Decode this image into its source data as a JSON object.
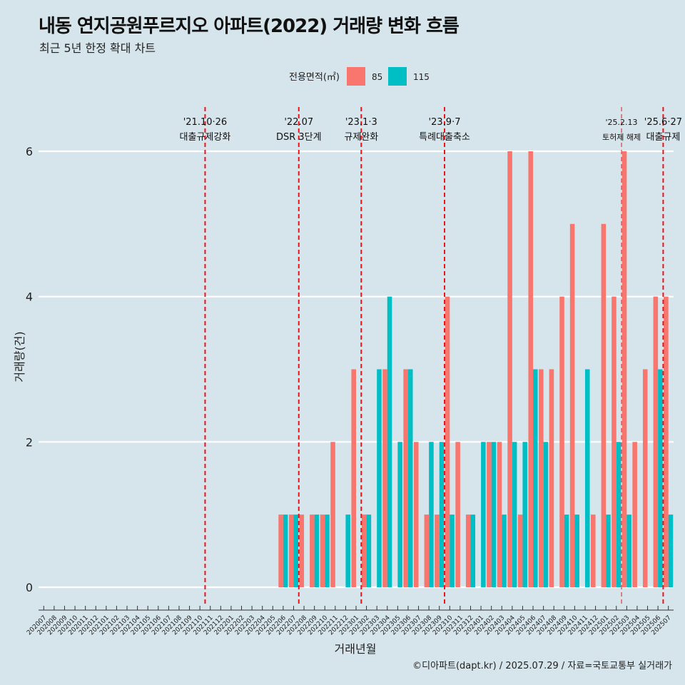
{
  "header": {
    "title": "내동 연지공원푸르지오 아파트(2022) 거래량 변화 흐름",
    "subtitle": "최근 5년 한정 확대 차트"
  },
  "footer": {
    "caption": "©디아파트(dapt.kr) / 2025.07.29 / 자료=국토교통부 실거래가"
  },
  "colors": {
    "background": "#d6e4eb",
    "series_85": "#f8766d",
    "series_115": "#00bfc4",
    "event_line": "#e8161b",
    "grid": "#ffffff"
  },
  "chart_data": {
    "type": "bar",
    "xlabel": "거래년월",
    "ylabel": "거래량(건)",
    "ylim": [
      0,
      6
    ],
    "yticks": [
      0,
      2,
      4,
      6
    ],
    "grid": "horizontal major lines",
    "legend": {
      "title": "전용면적(㎡)",
      "placement": "top-center"
    },
    "categories": [
      "202007",
      "202008",
      "202009",
      "202010",
      "202011",
      "202012",
      "202101",
      "202102",
      "202103",
      "202104",
      "202105",
      "202106",
      "202107",
      "202108",
      "202109",
      "202110",
      "202111",
      "202112",
      "202201",
      "202202",
      "202203",
      "202204",
      "202205",
      "202206",
      "202207",
      "202208",
      "202209",
      "202210",
      "202211",
      "202212",
      "202301",
      "202302",
      "202303",
      "202304",
      "202305",
      "202306",
      "202307",
      "202308",
      "202309",
      "202310",
      "202311",
      "202312",
      "202401",
      "202402",
      "202403",
      "202404",
      "202405",
      "202406",
      "202407",
      "202408",
      "202409",
      "202410",
      "202411",
      "202412",
      "202501",
      "202502",
      "202503",
      "202504",
      "202505",
      "202506",
      "202507"
    ],
    "series": [
      {
        "name": "85",
        "color": "#f8766d",
        "values": [
          0,
          0,
          0,
          0,
          0,
          0,
          0,
          0,
          0,
          0,
          0,
          0,
          0,
          0,
          0,
          0,
          0,
          0,
          0,
          0,
          0,
          0,
          0,
          1,
          1,
          1,
          1,
          1,
          2,
          0,
          3,
          1,
          0,
          3,
          0,
          3,
          2,
          1,
          1,
          4,
          2,
          1,
          0,
          2,
          2,
          6,
          1,
          6,
          3,
          3,
          4,
          5,
          0,
          1,
          5,
          4,
          6,
          2,
          3,
          4,
          4
        ]
      },
      {
        "name": "115",
        "color": "#00bfc4",
        "values": [
          0,
          0,
          0,
          0,
          0,
          0,
          0,
          0,
          0,
          0,
          0,
          0,
          0,
          0,
          0,
          0,
          0,
          0,
          0,
          0,
          0,
          0,
          0,
          1,
          1,
          0,
          1,
          1,
          0,
          1,
          0,
          1,
          3,
          4,
          2,
          3,
          0,
          2,
          2,
          1,
          0,
          1,
          2,
          2,
          1,
          2,
          2,
          3,
          2,
          0,
          1,
          1,
          3,
          0,
          1,
          2,
          1,
          0,
          0,
          3,
          1
        ]
      }
    ],
    "events": [
      {
        "after_category": "202110",
        "date": "'21.10·26",
        "label": "대출규제강화",
        "style": "thick"
      },
      {
        "after_category": "202207",
        "date": "'22.07",
        "label": "DSR 3단계",
        "style": "thick"
      },
      {
        "after_category": "202301",
        "date": "'23.1·3",
        "label": "규제완화",
        "style": "thick"
      },
      {
        "after_category": "202309",
        "date": "'23.9·7",
        "label": "특례대출축소",
        "style": "thick"
      },
      {
        "after_category": "202502",
        "date": "'25.2.13",
        "label": "토허제 해제",
        "style": "thin"
      },
      {
        "after_category": "202506",
        "date": "'25.6·27",
        "label": "대출규제",
        "style": "thick"
      }
    ]
  }
}
